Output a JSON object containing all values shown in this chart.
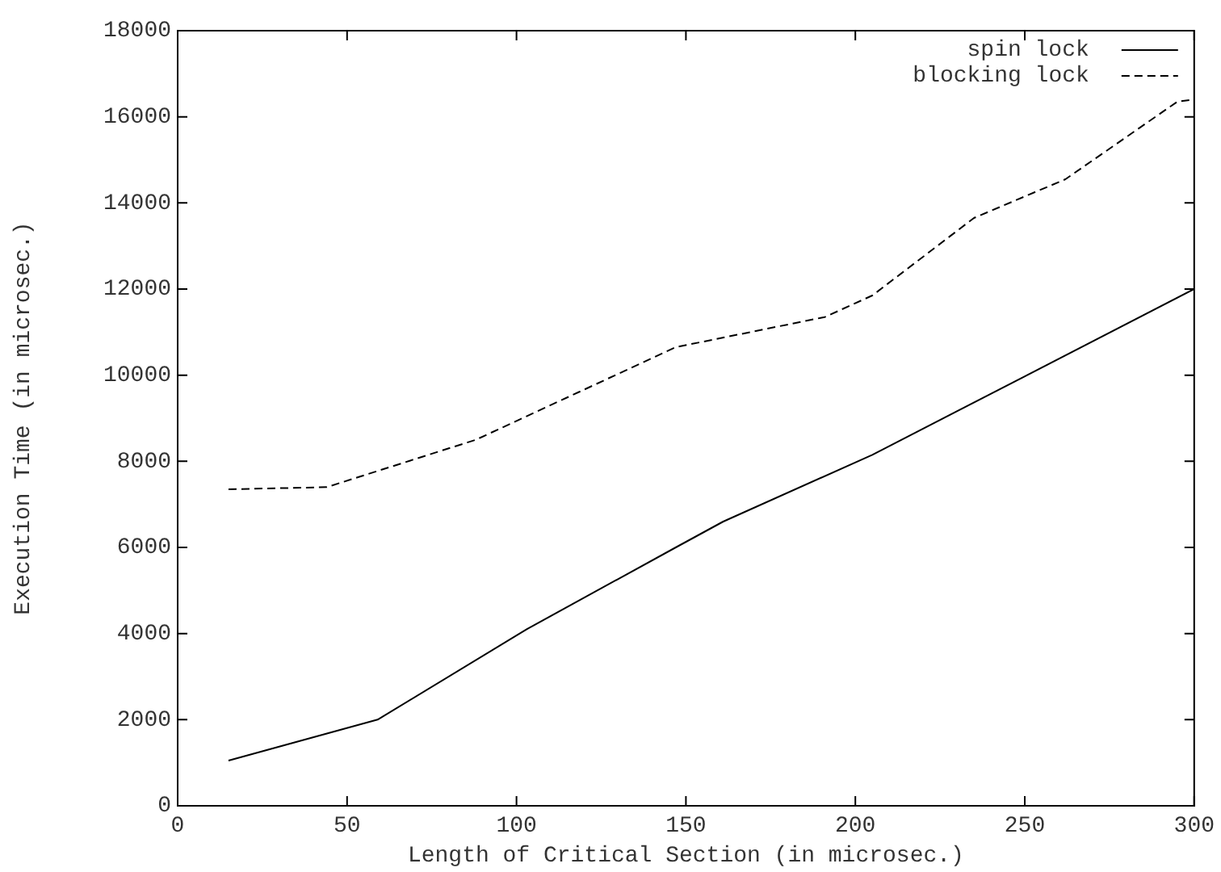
{
  "chart_data": {
    "type": "line",
    "xlabel": "Length of Critical Section (in microsec.)",
    "ylabel": "Execution Time (in microsec.)",
    "xlim": [
      0,
      300
    ],
    "xticks": [
      0,
      50,
      100,
      150,
      200,
      250,
      300
    ],
    "ylim": [
      0,
      18000
    ],
    "yticks": [
      0,
      2000,
      4000,
      6000,
      8000,
      10000,
      12000,
      14000,
      16000,
      18000
    ],
    "legend": "top right",
    "grid": false,
    "marker": "none",
    "series": [
      {
        "name": "spin lock",
        "color": "#000000",
        "line_style": "solid",
        "x": [
          15,
          59,
          103,
          147,
          161,
          205,
          300
        ],
        "values": [
          1050,
          2000,
          4100,
          6000,
          6600,
          8150,
          12000
        ]
      },
      {
        "name": "blocking lock",
        "color": "#000000",
        "line_style": "dashed",
        "x": [
          15,
          44,
          88,
          147,
          191,
          205,
          235,
          262,
          295,
          300
        ],
        "values": [
          7350,
          7400,
          8500,
          10650,
          11350,
          11850,
          13650,
          14550,
          16350,
          16400
        ]
      }
    ]
  }
}
